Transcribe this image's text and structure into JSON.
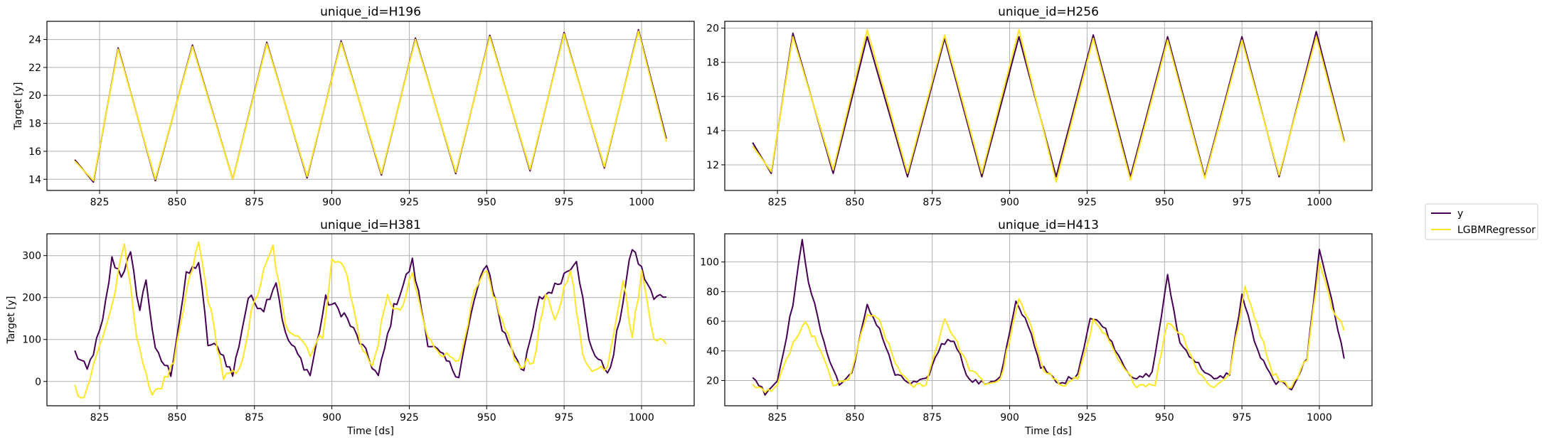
{
  "colors": {
    "y": "#440154",
    "LGBMRegressor": "#fde725"
  },
  "legend": {
    "placement": "right",
    "items": [
      "y",
      "LGBMRegressor"
    ]
  },
  "chart_data": [
    {
      "type": "line",
      "title": "unique_id=H196",
      "xlabel": "",
      "ylabel": "Target [y]",
      "xlim": [
        808,
        1017
      ],
      "ylim": [
        13.2,
        25.3
      ],
      "xticks": [
        825,
        850,
        875,
        900,
        925,
        950,
        975,
        1000
      ],
      "yticks": [
        14,
        16,
        18,
        20,
        22,
        24
      ],
      "grid": true,
      "pattern": {
        "kind": "daily-smooth",
        "x_start": 817,
        "x_end": 1008,
        "base": 13.7,
        "amp_start": 9.6,
        "amp_end": 11.0,
        "noise": 0.1
      },
      "series": [
        {
          "name": "y",
          "color": "#440154",
          "key_points": [
            [
              817,
              15.4
            ],
            [
              823,
              13.8
            ],
            [
              831,
              23.4
            ],
            [
              843,
              13.9
            ],
            [
              855,
              23.6
            ],
            [
              868,
              14.0
            ],
            [
              879,
              23.8
            ],
            [
              892,
              14.1
            ],
            [
              903,
              23.9
            ],
            [
              916,
              14.3
            ],
            [
              927,
              24.1
            ],
            [
              940,
              14.4
            ],
            [
              951,
              24.3
            ],
            [
              964,
              14.6
            ],
            [
              975,
              24.5
            ],
            [
              988,
              14.8
            ],
            [
              999,
              24.7
            ],
            [
              1008,
              16.9
            ]
          ]
        },
        {
          "name": "LGBMRegressor",
          "color": "#fde725",
          "key_points": [
            [
              817,
              15.3
            ],
            [
              823,
              13.9
            ],
            [
              831,
              23.3
            ],
            [
              843,
              14.0
            ],
            [
              855,
              23.5
            ],
            [
              868,
              14.0
            ],
            [
              879,
              23.7
            ],
            [
              892,
              14.2
            ],
            [
              903,
              23.8
            ],
            [
              916,
              14.4
            ],
            [
              927,
              24.0
            ],
            [
              940,
              14.5
            ],
            [
              951,
              24.2
            ],
            [
              964,
              14.7
            ],
            [
              975,
              24.4
            ],
            [
              988,
              14.9
            ],
            [
              999,
              24.6
            ],
            [
              1008,
              16.7
            ]
          ]
        }
      ]
    },
    {
      "type": "line",
      "title": "unique_id=H256",
      "xlabel": "",
      "ylabel": "",
      "xlim": [
        808,
        1017
      ],
      "ylim": [
        10.5,
        20.4
      ],
      "xticks": [
        825,
        850,
        875,
        900,
        925,
        950,
        975,
        1000
      ],
      "yticks": [
        12,
        14,
        16,
        18,
        20
      ],
      "grid": true,
      "pattern": {
        "kind": "daily-smooth",
        "x_start": 817,
        "x_end": 1008,
        "base": 11.3,
        "amp_start": 8.2,
        "amp_end": 8.4,
        "noise": 0.25
      },
      "series": [
        {
          "name": "y",
          "color": "#440154",
          "key_points": [
            [
              817,
              13.3
            ],
            [
              823,
              11.5
            ],
            [
              830,
              19.7
            ],
            [
              843,
              11.5
            ],
            [
              854,
              19.5
            ],
            [
              867,
              11.3
            ],
            [
              879,
              19.4
            ],
            [
              891,
              11.3
            ],
            [
              903,
              19.5
            ],
            [
              915,
              11.3
            ],
            [
              927,
              19.6
            ],
            [
              939,
              11.3
            ],
            [
              951,
              19.5
            ],
            [
              963,
              11.3
            ],
            [
              975,
              19.5
            ],
            [
              987,
              11.3
            ],
            [
              999,
              19.8
            ],
            [
              1008,
              13.4
            ]
          ]
        },
        {
          "name": "LGBMRegressor",
          "color": "#fde725",
          "key_points": [
            [
              817,
              13.1
            ],
            [
              823,
              11.6
            ],
            [
              830,
              19.5
            ],
            [
              843,
              11.7
            ],
            [
              854,
              19.9
            ],
            [
              867,
              11.5
            ],
            [
              879,
              19.6
            ],
            [
              891,
              11.5
            ],
            [
              903,
              19.9
            ],
            [
              915,
              11.0
            ],
            [
              927,
              19.4
            ],
            [
              939,
              11.1
            ],
            [
              951,
              19.3
            ],
            [
              963,
              11.2
            ],
            [
              975,
              19.3
            ],
            [
              987,
              11.4
            ],
            [
              999,
              19.5
            ],
            [
              1008,
              13.3
            ]
          ]
        }
      ]
    },
    {
      "type": "line",
      "title": "unique_id=H381",
      "xlabel": "Time [ds]",
      "ylabel": "Target [y]",
      "xlim": [
        808,
        1017
      ],
      "ylim": [
        -58,
        352
      ],
      "xticks": [
        825,
        850,
        875,
        900,
        925,
        950,
        975,
        1000
      ],
      "yticks": [
        0,
        100,
        200,
        300
      ],
      "grid": true,
      "pattern": {
        "kind": "daily-noisy",
        "x_start": 817,
        "x_end": 1008,
        "base": 20,
        "amp_start": 260,
        "amp_end": 280,
        "noise": 40
      },
      "series": [
        {
          "name": "y",
          "color": "#440154",
          "key_points": [
            [
              817,
              70
            ],
            [
              821,
              25
            ],
            [
              826,
              140
            ],
            [
              829,
              290
            ],
            [
              832,
              255
            ],
            [
              835,
              300
            ],
            [
              838,
              170
            ],
            [
              840,
              245
            ],
            [
              843,
              70
            ],
            [
              848,
              20
            ],
            [
              853,
              250
            ],
            [
              857,
              285
            ],
            [
              860,
              90
            ],
            [
              864,
              75
            ],
            [
              868,
              15
            ],
            [
              873,
              200
            ],
            [
              878,
              175
            ],
            [
              882,
              240
            ],
            [
              885,
              110
            ],
            [
              893,
              15
            ],
            [
              898,
              195
            ],
            [
              904,
              160
            ],
            [
              909,
              95
            ],
            [
              915,
              10
            ],
            [
              920,
              175
            ],
            [
              926,
              285
            ],
            [
              931,
              95
            ],
            [
              941,
              15
            ],
            [
              946,
              195
            ],
            [
              950,
              285
            ],
            [
              955,
              125
            ],
            [
              962,
              25
            ],
            [
              967,
              195
            ],
            [
              972,
              225
            ],
            [
              979,
              295
            ],
            [
              983,
              95
            ],
            [
              987,
              40
            ],
            [
              990,
              25
            ],
            [
              997,
              320
            ],
            [
              1004,
              195
            ],
            [
              1008,
              210
            ]
          ]
        },
        {
          "name": "LGBMRegressor",
          "color": "#fde725",
          "key_points": [
            [
              817,
              -15
            ],
            [
              820,
              -38
            ],
            [
              824,
              60
            ],
            [
              829,
              180
            ],
            [
              833,
              325
            ],
            [
              837,
              115
            ],
            [
              841,
              -25
            ],
            [
              845,
              -10
            ],
            [
              849,
              40
            ],
            [
              853,
              210
            ],
            [
              857,
              330
            ],
            [
              860,
              200
            ],
            [
              865,
              10
            ],
            [
              870,
              20
            ],
            [
              874,
              160
            ],
            [
              878,
              260
            ],
            [
              881,
              320
            ],
            [
              885,
              130
            ],
            [
              889,
              115
            ],
            [
              893,
              70
            ],
            [
              897,
              110
            ],
            [
              900,
              285
            ],
            [
              904,
              280
            ],
            [
              909,
              100
            ],
            [
              913,
              30
            ],
            [
              918,
              200
            ],
            [
              922,
              160
            ],
            [
              926,
              255
            ],
            [
              931,
              100
            ],
            [
              937,
              60
            ],
            [
              942,
              60
            ],
            [
              946,
              210
            ],
            [
              950,
              260
            ],
            [
              954,
              165
            ],
            [
              960,
              40
            ],
            [
              965,
              45
            ],
            [
              969,
              205
            ],
            [
              972,
              140
            ],
            [
              977,
              275
            ],
            [
              981,
              60
            ],
            [
              985,
              25
            ],
            [
              989,
              40
            ],
            [
              994,
              245
            ],
            [
              997,
              105
            ],
            [
              1000,
              260
            ],
            [
              1004,
              110
            ],
            [
              1008,
              85
            ]
          ]
        }
      ]
    },
    {
      "type": "line",
      "title": "unique_id=H413",
      "xlabel": "Time [ds]",
      "ylabel": "",
      "xlim": [
        808,
        1017
      ],
      "ylim": [
        3,
        119
      ],
      "xticks": [
        825,
        850,
        875,
        900,
        925,
        950,
        975,
        1000
      ],
      "yticks": [
        20,
        40,
        60,
        80,
        100
      ],
      "grid": true,
      "pattern": {
        "kind": "daily-noisy",
        "x_start": 817,
        "x_end": 1008,
        "base": 14,
        "amp_start": 50,
        "amp_end": 80,
        "noise": 6
      },
      "series": [
        {
          "name": "y",
          "color": "#440154",
          "key_points": [
            [
              817,
              23
            ],
            [
              821,
              12
            ],
            [
              825,
              20
            ],
            [
              830,
              72
            ],
            [
              833,
              114
            ],
            [
              835,
              88
            ],
            [
              840,
              45
            ],
            [
              845,
              17
            ],
            [
              849,
              25
            ],
            [
              854,
              70
            ],
            [
              858,
              55
            ],
            [
              863,
              24
            ],
            [
              868,
              18
            ],
            [
              873,
              20
            ],
            [
              878,
              45
            ],
            [
              882,
              48
            ],
            [
              887,
              20
            ],
            [
              892,
              18
            ],
            [
              897,
              22
            ],
            [
              902,
              72
            ],
            [
              906,
              58
            ],
            [
              910,
              30
            ],
            [
              916,
              17
            ],
            [
              922,
              25
            ],
            [
              926,
              62
            ],
            [
              930,
              58
            ],
            [
              935,
              38
            ],
            [
              940,
              20
            ],
            [
              946,
              25
            ],
            [
              951,
              90
            ],
            [
              955,
              45
            ],
            [
              960,
              33
            ],
            [
              966,
              20
            ],
            [
              971,
              25
            ],
            [
              975,
              78
            ],
            [
              980,
              40
            ],
            [
              985,
              20
            ],
            [
              991,
              15
            ],
            [
              996,
              35
            ],
            [
              1000,
              108
            ],
            [
              1004,
              75
            ],
            [
              1008,
              34
            ]
          ]
        },
        {
          "name": "LGBMRegressor",
          "color": "#fde725",
          "key_points": [
            [
              817,
              18
            ],
            [
              821,
              12
            ],
            [
              825,
              17
            ],
            [
              830,
              45
            ],
            [
              834,
              58
            ],
            [
              838,
              45
            ],
            [
              843,
              17
            ],
            [
              848,
              20
            ],
            [
              854,
              65
            ],
            [
              858,
              60
            ],
            [
              863,
              32
            ],
            [
              868,
              16
            ],
            [
              873,
              18
            ],
            [
              879,
              62
            ],
            [
              883,
              45
            ],
            [
              887,
              28
            ],
            [
              892,
              18
            ],
            [
              897,
              20
            ],
            [
              903,
              75
            ],
            [
              907,
              55
            ],
            [
              911,
              28
            ],
            [
              917,
              16
            ],
            [
              922,
              22
            ],
            [
              927,
              60
            ],
            [
              931,
              50
            ],
            [
              936,
              30
            ],
            [
              941,
              17
            ],
            [
              947,
              18
            ],
            [
              951,
              60
            ],
            [
              956,
              50
            ],
            [
              961,
              25
            ],
            [
              966,
              15
            ],
            [
              971,
              25
            ],
            [
              976,
              82
            ],
            [
              980,
              58
            ],
            [
              985,
              25
            ],
            [
              991,
              15
            ],
            [
              996,
              35
            ],
            [
              1000,
              100
            ],
            [
              1004,
              70
            ],
            [
              1008,
              55
            ]
          ]
        }
      ]
    }
  ]
}
